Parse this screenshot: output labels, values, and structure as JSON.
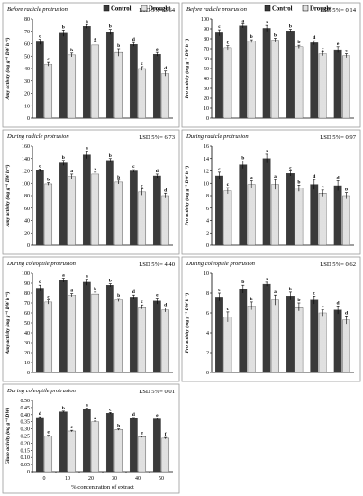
{
  "chart_data": [
    {
      "type": "bar",
      "title": "Before radicle protrusion",
      "lsd": "LSD 5%= 3.64",
      "ylabel": "Amy activity (mg g⁻¹ DW h⁻¹)",
      "xlabel": "",
      "ylim": [
        0,
        80
      ],
      "yticks": [
        0,
        10,
        20,
        30,
        40,
        50,
        60,
        70,
        80
      ],
      "categories": [
        "0",
        "10",
        "20",
        "30",
        "40",
        "50"
      ],
      "show_x_ticks": false,
      "legend": "top-left",
      "series": [
        {
          "name": "Control",
          "values": [
            61.5,
            68.5,
            74,
            69.5,
            59.5,
            51.5
          ],
          "errors": [
            2,
            2.5,
            1.5,
            2,
            1.5,
            1.5
          ],
          "letters": [
            "c",
            "b",
            "a",
            "b",
            "d",
            "e"
          ]
        },
        {
          "name": "Drought",
          "values": [
            43.5,
            51,
            59,
            53,
            40,
            36
          ],
          "errors": [
            1.5,
            1.5,
            2.5,
            3,
            1.5,
            2
          ],
          "letters": [
            "c",
            "b",
            "a",
            "b",
            "c",
            "d"
          ]
        }
      ]
    },
    {
      "type": "bar",
      "title": "Before radicle protrusion",
      "lsd": "LSD 5%= 0.14",
      "ylabel": "Pro activity (mg g⁻¹ DW h⁻¹)",
      "xlabel": "",
      "ylim": [
        0,
        100
      ],
      "yticks": [
        0,
        10,
        20,
        30,
        40,
        50,
        60,
        70,
        80,
        90,
        100
      ],
      "categories": [
        "0",
        "10",
        "20",
        "30",
        "40",
        "50"
      ],
      "show_x_ticks": false,
      "legend": "top-right",
      "series": [
        {
          "name": "Control",
          "values": [
            86,
            93,
            90.5,
            88,
            76,
            69
          ],
          "errors": [
            3,
            2,
            3,
            1.5,
            2,
            3
          ],
          "letters": [
            "c",
            "a",
            "a",
            "b",
            "d",
            "e"
          ]
        },
        {
          "name": "Drought",
          "values": [
            71,
            77.5,
            78.5,
            72,
            65,
            63
          ],
          "errors": [
            2,
            1.5,
            2,
            1.5,
            2,
            2
          ],
          "letters": [
            "c",
            "b",
            "b",
            "b",
            "c",
            "c"
          ]
        }
      ]
    },
    {
      "type": "bar",
      "title": "During radicle protrusion",
      "lsd": "LSD 5%= 6.73",
      "ylabel": "Amy activity (mg g⁻¹ DW h⁻¹)",
      "xlabel": "",
      "ylim": [
        0,
        160
      ],
      "yticks": [
        0,
        20,
        40,
        60,
        80,
        100,
        120,
        140,
        160
      ],
      "categories": [
        "0",
        "10",
        "20",
        "30",
        "40",
        "50"
      ],
      "show_x_ticks": false,
      "legend": null,
      "series": [
        {
          "name": "Control",
          "values": [
            121,
            133,
            146,
            137,
            120,
            112
          ],
          "errors": [
            2,
            4,
            6,
            3,
            2,
            3
          ],
          "letters": [
            "c",
            "b",
            "a",
            "b",
            "c",
            "d"
          ]
        },
        {
          "name": "Drought",
          "values": [
            99,
            111,
            115,
            102,
            86,
            80
          ],
          "errors": [
            2,
            4,
            3,
            3,
            5,
            4
          ],
          "letters": [
            "b",
            "a",
            "a",
            "b",
            "c",
            "d"
          ]
        }
      ]
    },
    {
      "type": "bar",
      "title": "During radicle protrusion",
      "lsd": "LSD 5%= 0.97",
      "ylabel": "Pro activity (mg g⁻¹ DW h⁻¹)",
      "xlabel": "",
      "ylim": [
        0,
        16
      ],
      "yticks": [
        0,
        2,
        4,
        6,
        8,
        10,
        12,
        14,
        16
      ],
      "categories": [
        "0",
        "10",
        "20",
        "30",
        "40",
        "50"
      ],
      "show_x_ticks": false,
      "legend": null,
      "series": [
        {
          "name": "Control",
          "values": [
            11.2,
            13,
            14,
            11.6,
            9.8,
            9.6
          ],
          "errors": [
            0.6,
            0.6,
            0.7,
            0.4,
            0.8,
            0.8
          ],
          "letters": [
            "c",
            "b",
            "a",
            "c",
            "d",
            "d"
          ]
        },
        {
          "name": "Drought",
          "values": [
            8.8,
            9.8,
            9.8,
            9.2,
            8.4,
            8
          ],
          "errors": [
            0.5,
            0.6,
            0.8,
            0.5,
            0.5,
            0.5
          ],
          "letters": [
            "c",
            "a",
            "a",
            "b",
            "c",
            "b"
          ]
        }
      ]
    },
    {
      "type": "bar",
      "title": "During coleoptile protrusion",
      "lsd": "LSD 5%= 4.40",
      "ylabel": "Amy activity (mg g⁻¹ DW h⁻¹)",
      "xlabel": "",
      "ylim": [
        0,
        100
      ],
      "yticks": [
        0,
        10,
        20,
        30,
        40,
        50,
        60,
        70,
        80,
        90,
        100
      ],
      "categories": [
        "0",
        "10",
        "20",
        "30",
        "40",
        "50"
      ],
      "show_x_ticks": false,
      "legend": null,
      "series": [
        {
          "name": "Control",
          "values": [
            85,
            93,
            91,
            88,
            76,
            72
          ],
          "errors": [
            3,
            2,
            3,
            1.5,
            2,
            3
          ],
          "letters": [
            "c",
            "a",
            "a",
            "b",
            "d",
            "e"
          ]
        },
        {
          "name": "Drought",
          "values": [
            71,
            78,
            79,
            73,
            66,
            63
          ],
          "errors": [
            2,
            1.5,
            2,
            1.5,
            2,
            2
          ],
          "letters": [
            "c",
            "a",
            "b",
            "b",
            "c",
            "d"
          ]
        }
      ]
    },
    {
      "type": "bar",
      "title": "During coleoptile protrusion",
      "lsd": "LSD 5%= 0.62",
      "ylabel": "Pro activity (mg g⁻¹ DW h⁻¹)",
      "xlabel": "",
      "ylim": [
        0,
        10
      ],
      "yticks": [
        0,
        2,
        4,
        6,
        8,
        10
      ],
      "categories": [
        "0",
        "10",
        "20",
        "30",
        "40",
        "50"
      ],
      "show_x_ticks": false,
      "legend": null,
      "series": [
        {
          "name": "Control",
          "values": [
            7.6,
            8.4,
            8.9,
            7.7,
            7.3,
            6.3
          ],
          "errors": [
            0.4,
            0.4,
            0.2,
            0.4,
            0.4,
            0.4
          ],
          "letters": [
            "c",
            "b",
            "a",
            "b",
            "c",
            "d"
          ]
        },
        {
          "name": "Drought",
          "values": [
            5.6,
            6.7,
            7.3,
            6.6,
            6,
            5.3
          ],
          "errors": [
            0.5,
            0.4,
            0.5,
            0.4,
            0.3,
            0.4
          ],
          "letters": [
            "c",
            "b",
            "a",
            "b",
            "c",
            "d"
          ]
        }
      ]
    },
    {
      "type": "bar",
      "title": "During coleoptile protrusion",
      "lsd": "LSD 5%= 0.01",
      "ylabel": "Gluco activity (mg g⁻¹ DW)",
      "xlabel": "% concentration of extract",
      "ylim": [
        0,
        0.5
      ],
      "yticks": [
        0,
        0.05,
        0.1,
        0.15,
        0.2,
        0.25,
        0.3,
        0.35,
        0.4,
        0.45,
        0.5
      ],
      "ytick_labels": [
        "0",
        "0.05",
        "0.10",
        "0.15",
        "0.20",
        "0.25",
        "0.30",
        "0.35",
        "0.40",
        "0.45",
        "0.50"
      ],
      "categories": [
        "0",
        "10",
        "20",
        "30",
        "40",
        "50"
      ],
      "show_x_ticks": true,
      "legend": null,
      "series": [
        {
          "name": "Control",
          "values": [
            0.38,
            0.42,
            0.44,
            0.41,
            0.375,
            0.37
          ],
          "errors": [
            0.005,
            0.005,
            0.005,
            0.005,
            0.005,
            0.005
          ],
          "letters": [
            "d",
            "b",
            "a",
            "c",
            "d",
            "e"
          ]
        },
        {
          "name": "Drought",
          "values": [
            0.25,
            0.285,
            0.35,
            0.295,
            0.245,
            0.235
          ],
          "errors": [
            0.005,
            0.005,
            0.005,
            0.005,
            0.005,
            0.005
          ],
          "letters": [
            "e",
            "c",
            "a",
            "b",
            "e",
            "f"
          ]
        }
      ]
    }
  ],
  "colors": {
    "control": "#3a3a3a",
    "drought_bg": "#ffffff",
    "drought_dot": "#6a6a6a",
    "border": "#9a9a9a"
  }
}
